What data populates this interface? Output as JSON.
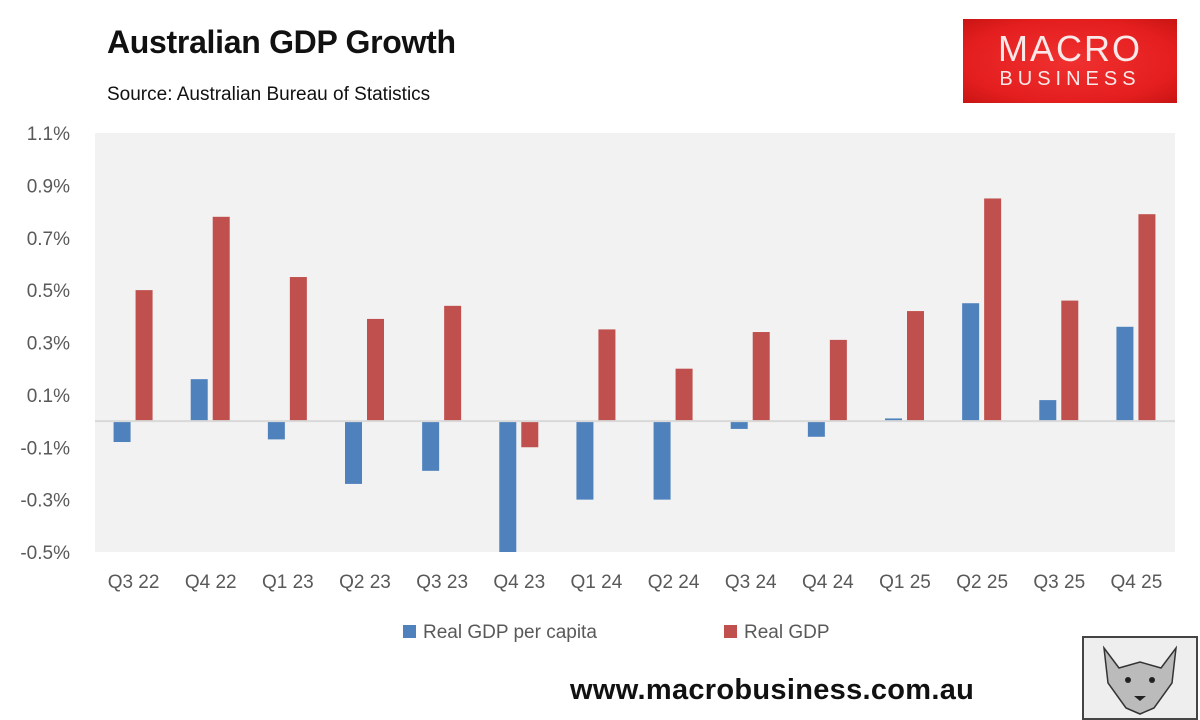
{
  "chart_data": {
    "type": "bar",
    "title": "Australian GDP Growth",
    "subtitle": "Source: Australian Bureau of Statistics",
    "categories": [
      "Q3 22",
      "Q4 22",
      "Q1 23",
      "Q2 23",
      "Q3 23",
      "Q4 23",
      "Q1 24",
      "Q2 24",
      "Q3 24",
      "Q4 24",
      "Q1 25",
      "Q2 25",
      "Q3 25",
      "Q4 25"
    ],
    "series": [
      {
        "name": "Real GDP per capita",
        "color": "#4f81bd",
        "values": [
          -0.08,
          0.16,
          -0.07,
          -0.24,
          -0.19,
          -0.5,
          -0.3,
          -0.3,
          -0.03,
          -0.06,
          0.01,
          0.45,
          0.08,
          0.36
        ]
      },
      {
        "name": "Real GDP",
        "color": "#c0504d",
        "values": [
          0.5,
          0.78,
          0.55,
          0.39,
          0.44,
          -0.1,
          0.35,
          0.2,
          0.34,
          0.31,
          0.42,
          0.85,
          0.46,
          0.79
        ]
      }
    ],
    "ylim": [
      -0.5,
      1.1
    ],
    "yticks": [
      "1.1%",
      "0.9%",
      "0.7%",
      "0.5%",
      "0.3%",
      "0.1%",
      "-0.1%",
      "-0.3%",
      "-0.5%"
    ],
    "ytick_values": [
      1.1,
      0.9,
      0.7,
      0.5,
      0.3,
      0.1,
      -0.1,
      -0.3,
      -0.5
    ],
    "grid": false,
    "legend": "bottom",
    "plot_background": "#f2f2f2"
  },
  "logo": {
    "line1": "MACRO",
    "line2": "BUSINESS"
  },
  "footer_url": "www.macrobusiness.com.au"
}
